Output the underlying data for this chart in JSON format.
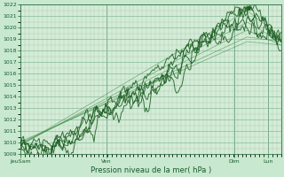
{
  "title": "",
  "xlabel": "Pression niveau de la mer( hPa )",
  "ylabel": "",
  "bg_color": "#c8e8d0",
  "plot_bg_color": "#d4ecd8",
  "grid_major_color": "#88bb99",
  "grid_minor_color": "#aaccaa",
  "text_color": "#1a5c2a",
  "line_color_dark": "#1a5c20",
  "line_color_mid": "#2a7a35",
  "line_color_thin": "#3a8a45",
  "ylim": [
    1009,
    1022
  ],
  "yticks": [
    1009,
    1010,
    1011,
    1012,
    1013,
    1014,
    1015,
    1016,
    1017,
    1018,
    1019,
    1020,
    1021,
    1022
  ],
  "day_labels": [
    "JeuSam",
    "Ven",
    "Dim",
    "Lun"
  ],
  "day_positions": [
    0.0,
    0.33,
    0.82,
    0.95
  ],
  "n_points": 200
}
